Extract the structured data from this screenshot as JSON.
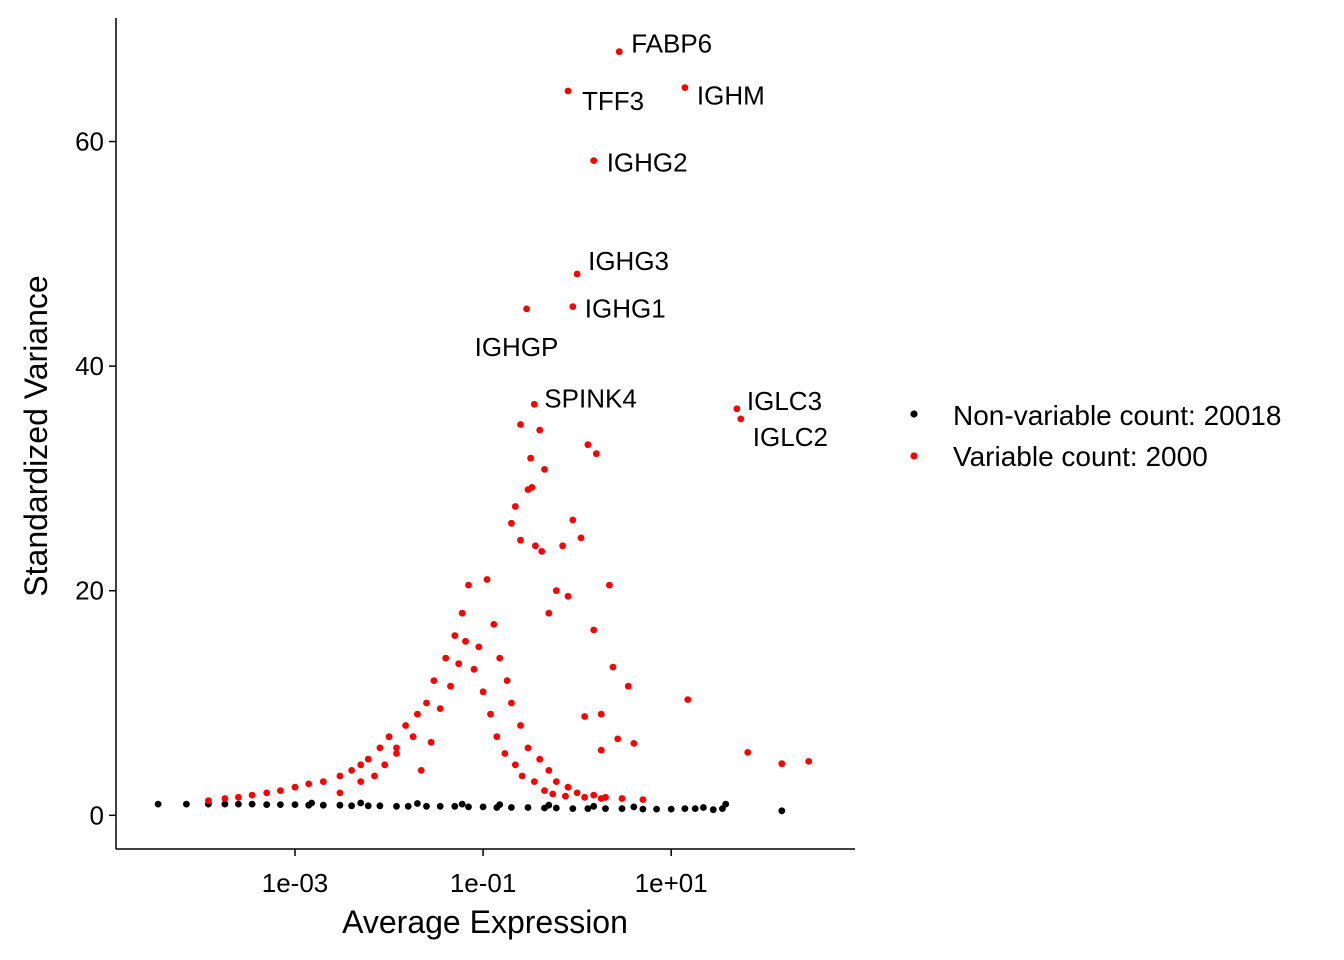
{
  "chart_data": {
    "type": "scatter",
    "xlabel": "Average Expression",
    "ylabel": "Standardized Variance",
    "x_scale": "log10",
    "xlim": [
      1.25e-05,
      900
    ],
    "ylim": [
      -3,
      71
    ],
    "x_ticks": [
      {
        "value": 0.001,
        "label": "1e-03"
      },
      {
        "value": 0.1,
        "label": "1e-01"
      },
      {
        "value": 10,
        "label": "1e+01"
      }
    ],
    "y_ticks": [
      {
        "value": 0,
        "label": "0"
      },
      {
        "value": 20,
        "label": "20"
      },
      {
        "value": 40,
        "label": "40"
      },
      {
        "value": 60,
        "label": "60"
      }
    ],
    "grid": false,
    "legend_position": "right",
    "series": [
      {
        "name": "Non-variable count: 20018",
        "color": "#000000",
        "points": [
          [
            3.5e-05,
            1.0
          ],
          [
            7e-05,
            1.0
          ],
          [
            0.00012,
            1.0
          ],
          [
            0.00018,
            1.0
          ],
          [
            0.00025,
            1.0
          ],
          [
            0.00035,
            1.0
          ],
          [
            0.0005,
            0.95
          ],
          [
            0.0007,
            0.95
          ],
          [
            0.001,
            0.95
          ],
          [
            0.0014,
            0.9
          ],
          [
            0.002,
            0.9
          ],
          [
            0.003,
            0.9
          ],
          [
            0.004,
            0.85
          ],
          [
            0.006,
            0.85
          ],
          [
            0.008,
            0.85
          ],
          [
            0.012,
            0.8
          ],
          [
            0.016,
            0.8
          ],
          [
            0.025,
            0.8
          ],
          [
            0.035,
            0.8
          ],
          [
            0.05,
            0.8
          ],
          [
            0.07,
            0.75
          ],
          [
            0.1,
            0.75
          ],
          [
            0.14,
            0.7
          ],
          [
            0.2,
            0.7
          ],
          [
            0.3,
            0.7
          ],
          [
            0.45,
            0.65
          ],
          [
            0.6,
            0.65
          ],
          [
            0.9,
            0.6
          ],
          [
            1.3,
            0.6
          ],
          [
            2,
            0.6
          ],
          [
            3,
            0.6
          ],
          [
            5,
            0.55
          ],
          [
            7,
            0.55
          ],
          [
            10,
            0.55
          ],
          [
            14,
            0.6
          ],
          [
            18,
            0.6
          ],
          [
            22,
            0.7
          ],
          [
            28,
            0.5
          ],
          [
            35,
            0.6
          ],
          [
            38,
            1.0
          ],
          [
            150,
            0.4
          ],
          [
            0.0015,
            1.1
          ],
          [
            0.005,
            1.1
          ],
          [
            0.02,
            1.05
          ],
          [
            0.06,
            1.0
          ],
          [
            0.15,
            0.95
          ],
          [
            0.5,
            0.9
          ],
          [
            1.5,
            0.8
          ],
          [
            4,
            0.75
          ]
        ]
      },
      {
        "name": "Variable count: 2000",
        "color": "#ff0000",
        "points": [
          [
            0.00012,
            1.3
          ],
          [
            0.00018,
            1.5
          ],
          [
            0.00025,
            1.6
          ],
          [
            0.00035,
            1.8
          ],
          [
            0.0005,
            2.0
          ],
          [
            0.0007,
            2.2
          ],
          [
            0.001,
            2.5
          ],
          [
            0.0014,
            2.8
          ],
          [
            0.002,
            3.0
          ],
          [
            0.003,
            3.5
          ],
          [
            0.004,
            4.0
          ],
          [
            0.005,
            4.5
          ],
          [
            0.006,
            5.0
          ],
          [
            0.008,
            6.0
          ],
          [
            0.01,
            7.0
          ],
          [
            0.012,
            6.0
          ],
          [
            0.015,
            8.0
          ],
          [
            0.02,
            9.0
          ],
          [
            0.025,
            10.0
          ],
          [
            0.03,
            12.0
          ],
          [
            0.04,
            14.0
          ],
          [
            0.05,
            16.0
          ],
          [
            0.06,
            18.0
          ],
          [
            0.07,
            20.5
          ],
          [
            0.09,
            15.0
          ],
          [
            0.11,
            21.0
          ],
          [
            0.13,
            17.0
          ],
          [
            0.15,
            14.0
          ],
          [
            0.18,
            12.0
          ],
          [
            0.2,
            10.0
          ],
          [
            0.25,
            8.0
          ],
          [
            0.3,
            6.0
          ],
          [
            0.4,
            5.0
          ],
          [
            0.5,
            4.0
          ],
          [
            0.6,
            3.0
          ],
          [
            0.8,
            2.5
          ],
          [
            1.0,
            2.0
          ],
          [
            1.5,
            1.8
          ],
          [
            2,
            1.6
          ],
          [
            3,
            1.5
          ],
          [
            5,
            1.4
          ],
          [
            0.003,
            2.0
          ],
          [
            0.005,
            3.0
          ],
          [
            0.007,
            3.5
          ],
          [
            0.009,
            4.5
          ],
          [
            0.012,
            5.5
          ],
          [
            0.018,
            7.0
          ],
          [
            0.022,
            4.0
          ],
          [
            0.028,
            6.5
          ],
          [
            0.035,
            9.5
          ],
          [
            0.045,
            11.5
          ],
          [
            0.055,
            13.5
          ],
          [
            0.065,
            15.5
          ],
          [
            0.08,
            13.0
          ],
          [
            0.1,
            11.0
          ],
          [
            0.12,
            9.0
          ],
          [
            0.14,
            7.0
          ],
          [
            0.17,
            5.5
          ],
          [
            0.22,
            4.5
          ],
          [
            0.26,
            3.5
          ],
          [
            0.35,
            3.0
          ],
          [
            0.45,
            2.2
          ],
          [
            0.55,
            1.9
          ],
          [
            0.75,
            1.7
          ],
          [
            1.2,
            1.6
          ],
          [
            1.8,
            1.5
          ],
          [
            0.2,
            26.0
          ],
          [
            0.22,
            27.5
          ],
          [
            0.25,
            24.5
          ],
          [
            0.3,
            29.0
          ],
          [
            0.33,
            29.2
          ],
          [
            0.36,
            24.0
          ],
          [
            0.42,
            23.5
          ],
          [
            0.45,
            30.8
          ],
          [
            0.32,
            31.8
          ],
          [
            0.25,
            34.8
          ],
          [
            0.4,
            34.3
          ],
          [
            0.7,
            24.0
          ],
          [
            0.9,
            26.3
          ],
          [
            1.1,
            24.7
          ],
          [
            1.6,
            32.2
          ],
          [
            1.3,
            33.0
          ],
          [
            0.6,
            20.0
          ],
          [
            0.8,
            19.5
          ],
          [
            0.5,
            18.0
          ],
          [
            1.5,
            16.5
          ],
          [
            2.2,
            20.5
          ],
          [
            2.4,
            13.2
          ],
          [
            3.5,
            11.5
          ],
          [
            1.8,
            9.0
          ],
          [
            2.7,
            6.8
          ],
          [
            4,
            6.4
          ],
          [
            1.2,
            8.8
          ],
          [
            1.8,
            5.8
          ],
          [
            15,
            10.3
          ],
          [
            65,
            5.6
          ],
          [
            150,
            4.6
          ],
          [
            290,
            4.8
          ],
          [
            0.29,
            45.1
          ],
          [
            0.9,
            45.3
          ],
          [
            1.0,
            48.2
          ],
          [
            1.5,
            58.3
          ],
          [
            0.8,
            64.5
          ],
          [
            2.8,
            68.0
          ],
          [
            14,
            64.8
          ],
          [
            0.35,
            36.6
          ],
          [
            50,
            36.2
          ],
          [
            55,
            35.3
          ]
        ]
      }
    ],
    "annotations": [
      {
        "label": "FABP6",
        "x": 2.8,
        "y": 68.0,
        "dx": 12,
        "dy": -8
      },
      {
        "label": "TFF3",
        "x": 0.8,
        "y": 64.5,
        "dx": 14,
        "dy": 10
      },
      {
        "label": "IGHM",
        "x": 14,
        "y": 64.8,
        "dx": 12,
        "dy": 8
      },
      {
        "label": "IGHG2",
        "x": 1.5,
        "y": 58.3,
        "dx": 13,
        "dy": 2
      },
      {
        "label": "IGHG3",
        "x": 1.0,
        "y": 48.2,
        "dx": 11,
        "dy": -13
      },
      {
        "label": "IGHG1",
        "x": 0.9,
        "y": 45.3,
        "dx": 12,
        "dy": 2
      },
      {
        "label": "IGHGP",
        "x": 0.29,
        "y": 45.1,
        "dx": -52,
        "dy": 38
      },
      {
        "label": "SPINK4",
        "x": 0.35,
        "y": 36.6,
        "dx": 10,
        "dy": -6
      },
      {
        "label": "IGLC3",
        "x": 50,
        "y": 36.2,
        "dx": 10,
        "dy": -8
      },
      {
        "label": "IGLC2",
        "x": 55,
        "y": 35.3,
        "dx": 12,
        "dy": 18
      }
    ]
  }
}
